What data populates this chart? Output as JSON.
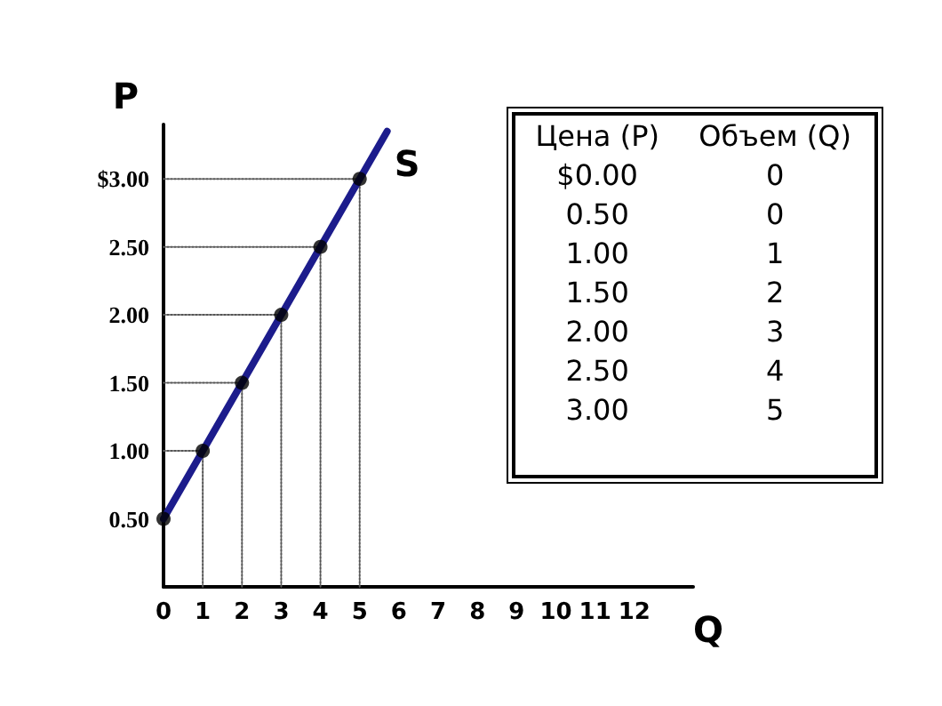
{
  "chart_data": {
    "type": "line",
    "xlabel": "Q",
    "ylabel": "P",
    "series": [
      {
        "type": "scatter",
        "marker": "circle",
        "color": "#000000",
        "x": [
          0,
          1,
          2,
          3,
          4,
          5
        ],
        "values": [
          0.5,
          1.0,
          1.5,
          2.0,
          2.5,
          3.0
        ]
      },
      {
        "name": "S",
        "color": "#1c1c8c",
        "x": [
          0,
          5.7
        ],
        "values": [
          0.5,
          3.35
        ]
      },
      {
        "line_style": "dotted",
        "color": "#555555",
        "x": [
          1,
          1
        ],
        "values": [
          0,
          1.0
        ]
      },
      {
        "line_style": "dotted",
        "color": "#555555",
        "x": [
          2,
          2
        ],
        "values": [
          0,
          1.5
        ]
      },
      {
        "line_style": "dotted",
        "color": "#555555",
        "x": [
          3,
          3
        ],
        "values": [
          0,
          2.0
        ]
      },
      {
        "line_style": "dotted",
        "color": "#555555",
        "x": [
          4,
          4
        ],
        "values": [
          0,
          2.5
        ]
      },
      {
        "line_style": "dotted",
        "color": "#555555",
        "x": [
          5,
          5
        ],
        "values": [
          0,
          3.0
        ]
      },
      {
        "line_style": "dotted",
        "color": "#555555",
        "x": [
          0,
          1
        ],
        "values": [
          1.0,
          1.0
        ]
      },
      {
        "line_style": "dotted",
        "color": "#555555",
        "x": [
          0,
          2
        ],
        "values": [
          1.5,
          1.5
        ]
      },
      {
        "line_style": "dotted",
        "color": "#555555",
        "x": [
          0,
          3
        ],
        "values": [
          2.0,
          2.0
        ]
      },
      {
        "line_style": "dotted",
        "color": "#555555",
        "x": [
          0,
          4
        ],
        "values": [
          2.5,
          2.5
        ]
      },
      {
        "line_style": "dotted",
        "color": "#555555",
        "x": [
          0,
          5
        ],
        "values": [
          3.0,
          3.0
        ]
      }
    ],
    "xlim": [
      0,
      13.5
    ],
    "xticks": [
      0,
      1,
      2,
      3,
      4,
      5,
      6,
      7,
      8,
      9,
      10,
      11,
      12
    ],
    "ylim": [
      0,
      3.4
    ],
    "yticks": [
      {
        "value": 0.5,
        "label": "0.50"
      },
      {
        "value": 1.0,
        "label": "1.00"
      },
      {
        "value": 1.5,
        "label": "1.50"
      },
      {
        "value": 2.0,
        "label": "2.00"
      },
      {
        "value": 2.5,
        "label": "2.50"
      },
      {
        "value": 3.0,
        "label": "$3.00"
      }
    ],
    "marker": "none",
    "line_style": "solid",
    "grid": false,
    "legend": false,
    "annotations": [
      "Цена (P)",
      "Объем (Q)",
      "$0.00",
      "0",
      "0.50",
      "0",
      "1.00",
      "1",
      "1.50",
      "2",
      "2.00",
      "3",
      "2.50",
      "4",
      "3.00",
      "5"
    ]
  }
}
